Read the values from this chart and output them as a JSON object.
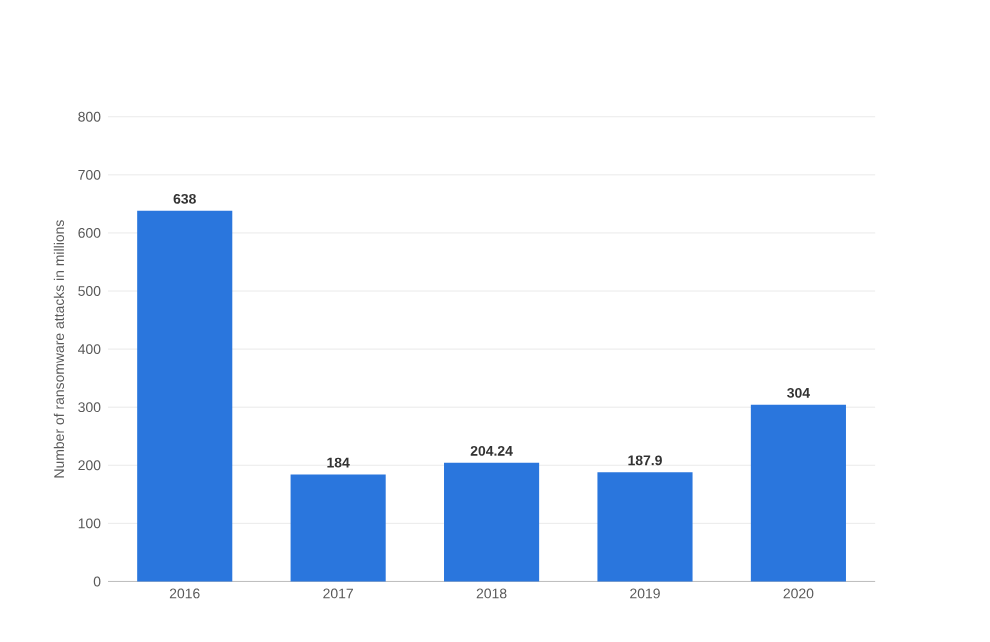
{
  "chart_data": {
    "type": "bar",
    "ylabel": "Number of ransomware attacks in millions",
    "categories": [
      "2016",
      "2017",
      "2018",
      "2019",
      "2020"
    ],
    "values": [
      638,
      184,
      204.24,
      187.9,
      304
    ],
    "color": "#2a76dd",
    "ylim": [
      0,
      800
    ],
    "yticks": [
      0,
      100,
      200,
      300,
      400,
      500,
      600,
      700,
      800
    ],
    "grid": "y",
    "data_labels": true
  }
}
